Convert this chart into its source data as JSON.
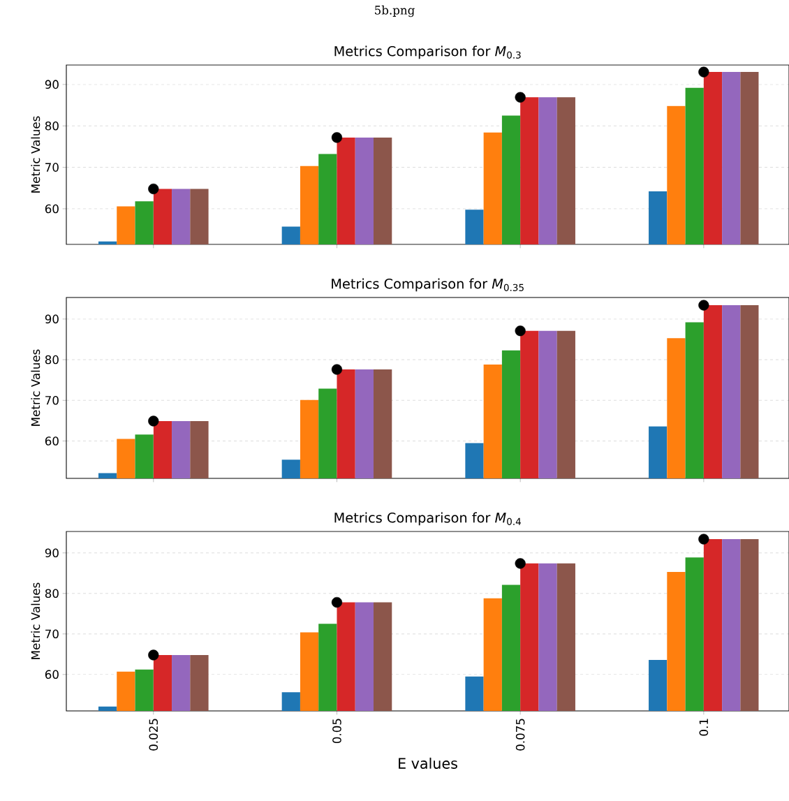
{
  "chart_data": [
    {
      "type": "bar",
      "title": "Metrics Comparison for *M*$_{0.3}$",
      "ylabel": "Metric Values",
      "annotations": [
        "5b.png"
      ],
      "categories": [
        "0.025",
        "0.05",
        "0.075",
        "0.1"
      ],
      "ylim": [
        51.4,
        94.7
      ],
      "yticks": [
        60,
        70,
        80,
        90
      ],
      "grid": "y",
      "tick_labels": "y",
      "series": [
        {
          "color": "#1f77b4",
          "values": [
            52.1,
            55.7,
            59.8,
            64.2
          ]
        },
        {
          "color": "#ff7f0e",
          "values": [
            60.6,
            70.3,
            78.4,
            84.8
          ]
        },
        {
          "color": "#2ca02c",
          "values": [
            61.8,
            73.2,
            82.5,
            89.2
          ]
        },
        {
          "color": "#d62728",
          "values": [
            64.8,
            77.2,
            86.9,
            93.0
          ]
        },
        {
          "color": "#9467bd",
          "values": [
            64.8,
            77.2,
            86.9,
            93.0
          ]
        },
        {
          "color": "#8c564b",
          "values": [
            64.8,
            77.2,
            86.9,
            93.0
          ]
        },
        {
          "type": "scatter",
          "color": "#000000",
          "x": [
            "0.025",
            "0.05",
            "0.075",
            "0.1"
          ],
          "values": [
            64.8,
            77.2,
            86.9,
            93.0
          ]
        }
      ]
    },
    {
      "type": "bar",
      "title": "Metrics Comparison for *M*$_{0.35}$",
      "ylabel": "Metric Values",
      "categories": [
        "0.025",
        "0.05",
        "0.075",
        "0.1"
      ],
      "ylim": [
        50.8,
        95.3
      ],
      "yticks": [
        60,
        70,
        80,
        90
      ],
      "grid": "y",
      "tick_labels": "y",
      "series": [
        {
          "color": "#1f77b4",
          "values": [
            52.1,
            55.4,
            59.5,
            63.6
          ]
        },
        {
          "color": "#ff7f0e",
          "values": [
            60.5,
            70.1,
            78.8,
            85.3
          ]
        },
        {
          "color": "#2ca02c",
          "values": [
            61.6,
            72.9,
            82.3,
            89.2
          ]
        },
        {
          "color": "#d62728",
          "values": [
            64.9,
            77.6,
            87.1,
            93.4
          ]
        },
        {
          "color": "#9467bd",
          "values": [
            64.9,
            77.6,
            87.1,
            93.4
          ]
        },
        {
          "color": "#8c564b",
          "values": [
            64.9,
            77.6,
            87.1,
            93.4
          ]
        },
        {
          "type": "scatter",
          "color": "#000000",
          "x": [
            "0.025",
            "0.05",
            "0.075",
            "0.1"
          ],
          "values": [
            64.9,
            77.6,
            87.1,
            93.4
          ]
        }
      ]
    },
    {
      "type": "bar",
      "title": "Metrics Comparison for *M*$_{0.4}$",
      "ylabel": "Metric Values",
      "xlabel": "E values",
      "categories": [
        "0.025",
        "0.05",
        "0.075",
        "0.1"
      ],
      "ylim": [
        51.0,
        95.3
      ],
      "yticks": [
        60,
        70,
        80,
        90
      ],
      "grid": "y",
      "series": [
        {
          "color": "#1f77b4",
          "values": [
            52.1,
            55.6,
            59.5,
            63.6
          ]
        },
        {
          "color": "#ff7f0e",
          "values": [
            60.7,
            70.4,
            78.8,
            85.3
          ]
        },
        {
          "color": "#2ca02c",
          "values": [
            61.2,
            72.5,
            82.1,
            88.9
          ]
        },
        {
          "color": "#d62728",
          "values": [
            64.8,
            77.8,
            87.4,
            93.4
          ]
        },
        {
          "color": "#9467bd",
          "values": [
            64.8,
            77.8,
            87.4,
            93.4
          ]
        },
        {
          "color": "#8c564b",
          "values": [
            64.8,
            77.8,
            87.4,
            93.4
          ]
        },
        {
          "type": "scatter",
          "color": "#000000",
          "x": [
            "0.025",
            "0.05",
            "0.075",
            "0.1"
          ],
          "values": [
            64.8,
            77.8,
            87.4,
            93.4
          ]
        }
      ]
    }
  ]
}
